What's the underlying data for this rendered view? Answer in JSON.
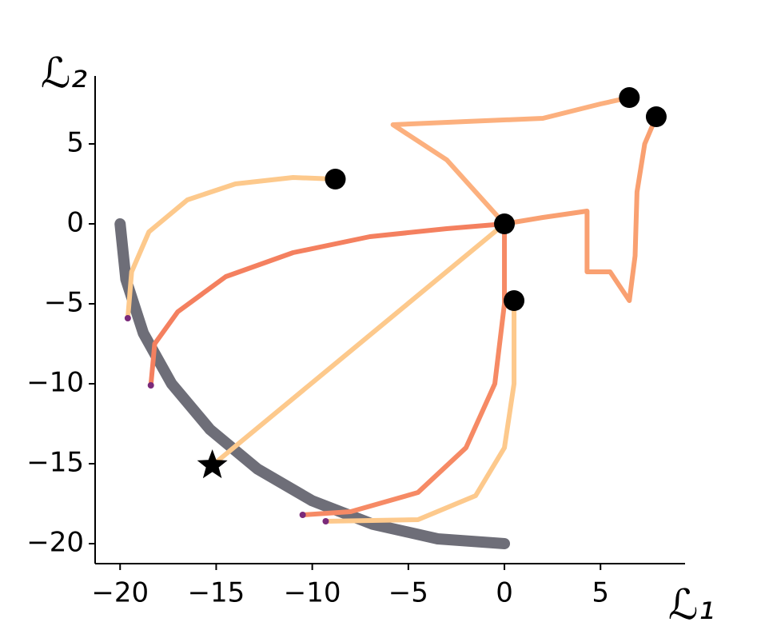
{
  "chart_data": {
    "type": "line",
    "xlabel": "ℒ₁",
    "ylabel": "ℒ₂",
    "xlim": [
      -21.3,
      9.4
    ],
    "ylim": [
      -21.25,
      9.25
    ],
    "xticks": [
      {
        "value": -20,
        "label": "−20"
      },
      {
        "value": -15,
        "label": "−15"
      },
      {
        "value": -10,
        "label": "−10"
      },
      {
        "value": -5,
        "label": "−5"
      },
      0,
      5
    ],
    "yticks": [
      {
        "value": -20,
        "label": "−20"
      },
      {
        "value": -15,
        "label": "−15"
      },
      {
        "value": -10,
        "label": "−10"
      },
      {
        "value": -5,
        "label": "−5"
      },
      0,
      5
    ],
    "grid": false,
    "series": [
      {
        "color": "#6e6e78",
        "width": 14,
        "x": [
          -20,
          -19.7,
          -18.79,
          -17.32,
          -15.32,
          -12.86,
          -10,
          -6.84,
          -3.47,
          0
        ],
        "y": [
          0,
          -3.47,
          -6.84,
          -10,
          -12.86,
          -15.32,
          -17.32,
          -18.79,
          -19.7,
          -20
        ]
      },
      {
        "color": "#fdc98c",
        "width": 6,
        "x": [
          -8.8,
          -11,
          -14,
          -16.5,
          -18.5,
          -19.4,
          -19.6
        ],
        "y": [
          2.8,
          2.9,
          2.5,
          1.5,
          -0.5,
          -3,
          -5.9
        ]
      },
      {
        "color": "#f4805f",
        "width": 6,
        "x": [
          0,
          -3,
          -7,
          -11,
          -14.5,
          -17,
          -18.2,
          -18.4
        ],
        "y": [
          0,
          -0.3,
          -0.8,
          -1.8,
          -3.3,
          -5.5,
          -7.5,
          -10.1
        ]
      },
      {
        "color": "#fdc98c",
        "width": 6,
        "x": [
          0,
          -15.2
        ],
        "y": [
          0,
          -15.1
        ]
      },
      {
        "color": "#f68a65",
        "width": 6,
        "x": [
          0,
          0,
          -0.5,
          -2,
          -4.5,
          -8,
          -10.5
        ],
        "y": [
          0,
          -5,
          -10,
          -14,
          -16.8,
          -18,
          -18.2
        ]
      },
      {
        "color": "#fdc98c",
        "width": 6,
        "x": [
          0.5,
          0.5,
          0,
          -1.5,
          -4.5,
          -9.3
        ],
        "y": [
          -4.8,
          -10,
          -14,
          -17,
          -18.5,
          -18.6
        ]
      },
      {
        "color": "#fcb07e",
        "width": 6,
        "x": [
          6.5,
          5,
          2,
          -2,
          -5.8,
          -3,
          -1.5,
          0
        ],
        "y": [
          7.9,
          7.5,
          6.6,
          6.4,
          6.2,
          4,
          2,
          0
        ]
      },
      {
        "color": "#f9a071",
        "width": 6,
        "x": [
          7.9,
          7.3,
          6.9,
          6.8,
          6.5,
          5.5,
          4.3,
          4.3,
          2,
          0
        ],
        "y": [
          6.7,
          5,
          2,
          -2,
          -4.8,
          -3,
          -3,
          0.8,
          0.4,
          0
        ]
      }
    ],
    "markers": [
      {
        "marker": "circle",
        "color": "#000000",
        "size": 13,
        "x": [
          -8.8,
          0,
          0.5,
          6.5,
          7.9
        ],
        "y": [
          2.8,
          0,
          -4.8,
          7.9,
          6.7
        ]
      },
      {
        "marker": "circle",
        "color": "#7a2a7a",
        "size": 4,
        "x": [
          -19.6,
          -18.4,
          -10.5,
          -9.3
        ],
        "y": [
          -5.9,
          -10.1,
          -18.2,
          -18.6
        ]
      },
      {
        "marker": "star",
        "color": "#000000",
        "size": 20,
        "x": [
          -15.2
        ],
        "y": [
          -15.1
        ]
      }
    ]
  }
}
